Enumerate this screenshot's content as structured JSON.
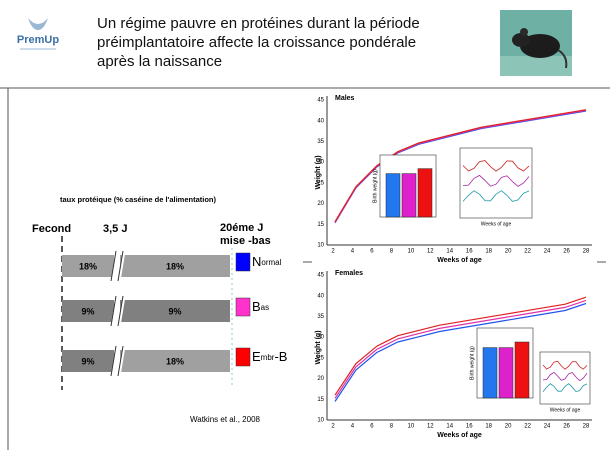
{
  "header": {
    "logo": "PremUp",
    "title_lines": [
      "Un régime pauvre en protéines durant la période",
      "préimplantatoire affecte la croissance pondérale",
      "après la naissance"
    ]
  },
  "diagram": {
    "caption": "taux protéique (% caséine de l'alimentation)",
    "timepoints": [
      "Fecond",
      "3,5 J",
      "20éme J",
      "mise -bas"
    ],
    "rows": [
      {
        "segments": [
          "18%",
          "18%"
        ],
        "group": [
          "N",
          "ormal"
        ]
      },
      {
        "segments": [
          "9%",
          "9%"
        ],
        "group": [
          "B",
          "as"
        ]
      },
      {
        "segments": [
          "9%",
          "18%"
        ],
        "group": [
          "E",
          "mbr",
          "-B"
        ]
      }
    ],
    "citation": "Watkins et al., 2008"
  },
  "figures": [
    {
      "title": "Males",
      "y_label": "Weight (g)",
      "x_label": "Weeks of age",
      "x_ticks": [
        "2",
        "4",
        "6",
        "8",
        "10",
        "12",
        "14",
        "16",
        "18",
        "20",
        "22",
        "24",
        "26",
        "28"
      ],
      "y_ticks": [
        "10",
        "15",
        "20",
        "25",
        "30",
        "35",
        "40",
        "45"
      ],
      "inset_y_label": "Birth weight (g)",
      "inset2_x_label": "Weeks of age"
    },
    {
      "title": "Females",
      "y_label": "Weight (g)",
      "x_label": "Weeks of age",
      "x_ticks": [
        "2",
        "4",
        "6",
        "8",
        "10",
        "12",
        "14",
        "16",
        "18",
        "20",
        "22",
        "24",
        "26",
        "28"
      ],
      "y_ticks": [
        "10",
        "15",
        "20",
        "25",
        "30",
        "35",
        "40",
        "45"
      ],
      "inset_y_label": "Birth weight (g)",
      "inset2_x_label": "Weeks of age"
    }
  ]
}
